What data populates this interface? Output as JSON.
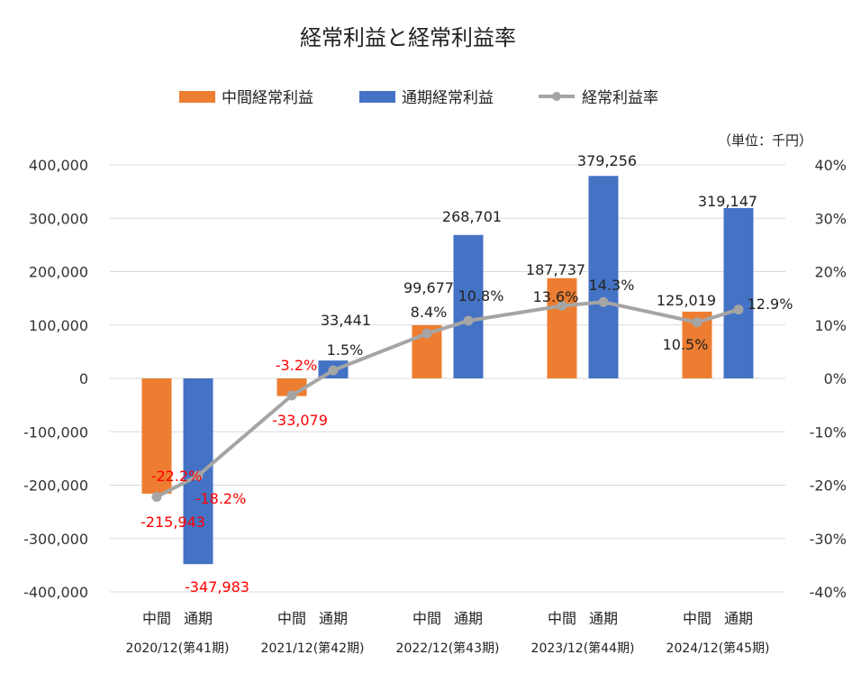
{
  "chart_data": {
    "type": "bar",
    "title": "経常利益と経常利益率",
    "unit_note": "（単位：千円）",
    "legend": [
      "中間経常利益",
      "通期経常利益",
      "経常利益率"
    ],
    "y_left": {
      "min": -400000,
      "max": 400000,
      "step": 100000,
      "ticks": [
        "400,000",
        "300,000",
        "200,000",
        "100,000",
        "0",
        "-100,000",
        "-200,000",
        "-300,000",
        "-400,000"
      ]
    },
    "y_right": {
      "min": -40,
      "max": 40,
      "step": 10,
      "ticks": [
        "40%",
        "30%",
        "20%",
        "10%",
        "0%",
        "-10%",
        "-20%",
        "-30%",
        "-40%"
      ]
    },
    "bar_labels": [
      "中間",
      "通期"
    ],
    "periods": [
      "2020/12(第41期)",
      "2021/12(第42期)",
      "2022/12(第43期)",
      "2023/12(第44期)",
      "2024/12(第45期)"
    ],
    "series": [
      {
        "name": "中間経常利益",
        "color": "#ED7D31",
        "values": [
          -215943,
          -33079,
          99677,
          187737,
          125019
        ],
        "labels": [
          "-215,943",
          "-33,079",
          "99,677",
          "187,737",
          "125,019"
        ]
      },
      {
        "name": "通期経常利益",
        "color": "#4472C4",
        "values": [
          -347983,
          33441,
          268701,
          379256,
          319147
        ],
        "labels": [
          "-347,983",
          "33,441",
          "268,701",
          "379,256",
          "319,147"
        ]
      },
      {
        "name": "経常利益率",
        "color": "#A5A5A5",
        "axis": "right",
        "values": [
          -22.2,
          -18.2,
          -3.2,
          1.5,
          8.4,
          10.8,
          13.6,
          14.3,
          10.5,
          12.9
        ],
        "labels": [
          "-22.2%",
          "-18.2%",
          "-3.2%",
          "1.5%",
          "8.4%",
          "10.8%",
          "13.6%",
          "14.3%",
          "10.5%",
          "12.9%"
        ]
      }
    ],
    "negative_label_color": "#FF0000",
    "label_color": "#222222",
    "grid": true,
    "legend_position": "top"
  }
}
